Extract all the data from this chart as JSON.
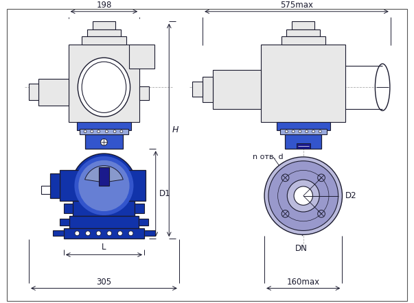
{
  "bg_color": "#ffffff",
  "line_color": "#1a1a2e",
  "blue_dark": "#1a1a8c",
  "blue_mid": "#3333bb",
  "blue_light": "#aaaaee",
  "blue_fill": "#2244aa",
  "blue_body": "#1133aa",
  "blue_flange": "#2233bb",
  "blue_grad1": "#3355cc",
  "blue_grad2": "#99aadd",
  "gray_light": "#e8e8e8",
  "gray_mid": "#cccccc",
  "gray_dark": "#999999",
  "lavender": "#9999cc",
  "lavender2": "#bbbbdd",
  "dash_color": "#aaaaaa",
  "dim_color": "#333333",
  "annotations": {
    "dim_198": "198",
    "dim_575": "575max",
    "dim_305": "305",
    "dim_160": "160max",
    "label_H": "H",
    "label_D1": "D1",
    "label_D2": "D2",
    "label_L": "L",
    "label_DN": "DN",
    "label_n_otv": "n отв. d"
  }
}
